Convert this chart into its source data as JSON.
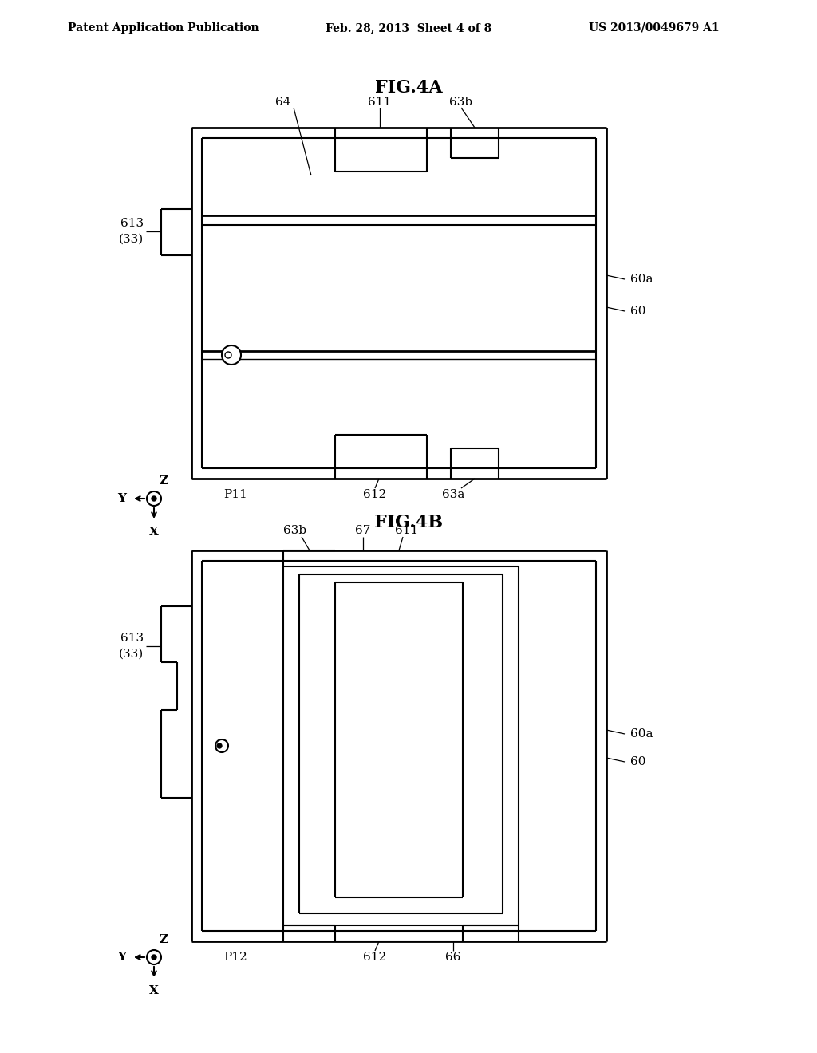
{
  "background_color": "#ffffff",
  "header_left": "Patent Application Publication",
  "header_center": "Feb. 28, 2013  Sheet 4 of 8",
  "header_right": "US 2013/0049679 A1",
  "fig4a_title": "FIG.4A",
  "fig4b_title": "FIG.4B"
}
